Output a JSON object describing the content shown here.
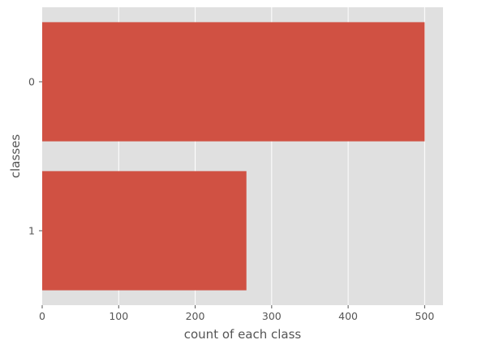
{
  "chart_data": {
    "type": "bar",
    "orientation": "horizontal",
    "categories": [
      "0",
      "1"
    ],
    "values": [
      500,
      267
    ],
    "title": "",
    "xlabel": "count of each class",
    "ylabel": "classes",
    "xlim": [
      0,
      524
    ],
    "xticks": [
      0,
      100,
      200,
      300,
      400,
      500
    ],
    "grid": true,
    "legend": "none",
    "colors": {
      "bar": "#d05143",
      "plot_background": "#e0e0e0",
      "grid": "#ffffff",
      "text": "#555555"
    }
  }
}
